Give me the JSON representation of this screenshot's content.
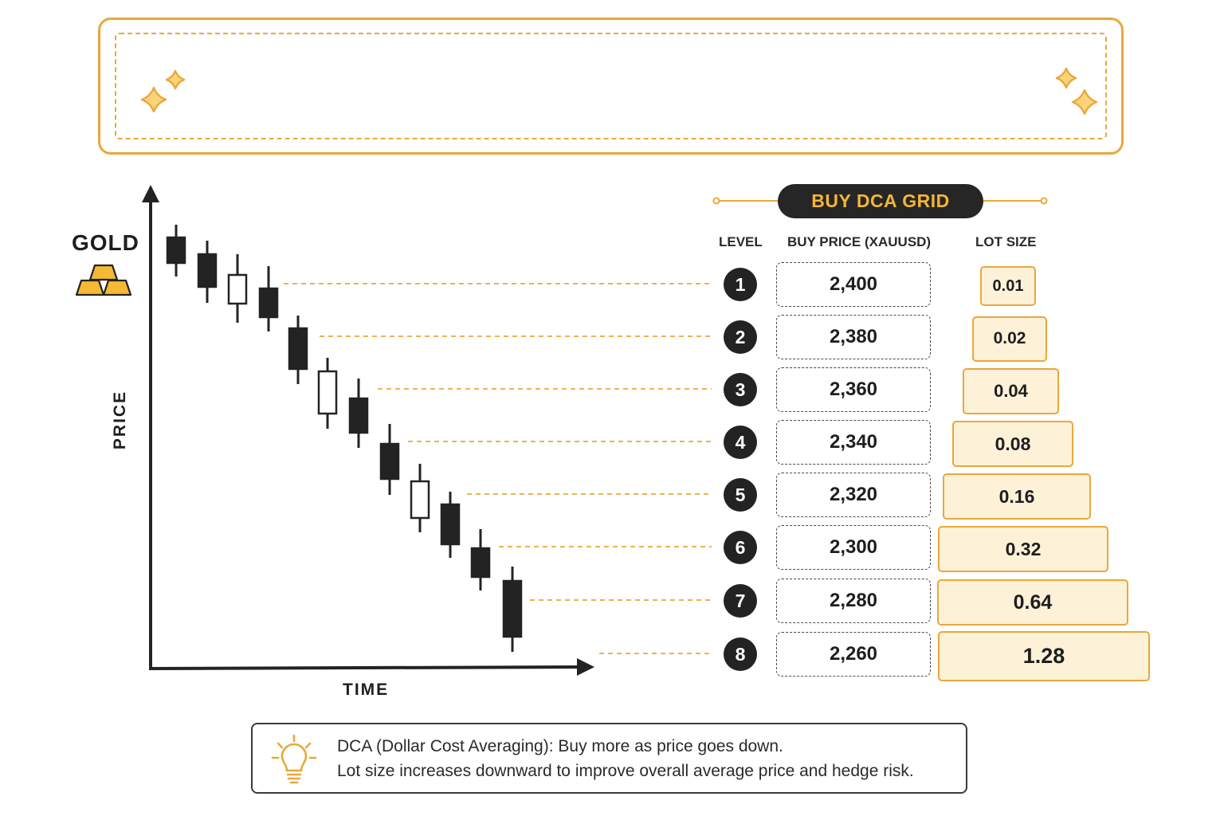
{
  "colors": {
    "accent": "#e9a83a",
    "dark": "#232323",
    "lot_fill": "#fdf1d8"
  },
  "icons": {
    "banner_left": "sparkle-icon",
    "banner_right": "sparkle-icon",
    "asset": "gold-bars-icon",
    "note": "lightbulb-icon"
  },
  "chart": {
    "asset_label": "GOLD",
    "y_axis_label": "PRICE",
    "x_axis_label": "TIME"
  },
  "chart_data": {
    "type": "candlestick",
    "trend": "down",
    "candle_direction": [
      "down",
      "down",
      "up",
      "down",
      "down",
      "up",
      "down",
      "down",
      "up",
      "down",
      "down",
      "down"
    ]
  },
  "grid": {
    "title": "BUY DCA GRID",
    "columns": {
      "level": "LEVEL",
      "price": "BUY PRICE (XAUUSD)",
      "lot": "LOT SIZE"
    },
    "rows": [
      {
        "level": "1",
        "price": "2,400",
        "lot": "0.01"
      },
      {
        "level": "2",
        "price": "2,380",
        "lot": "0.02"
      },
      {
        "level": "3",
        "price": "2,360",
        "lot": "0.04"
      },
      {
        "level": "4",
        "price": "2,340",
        "lot": "0.08"
      },
      {
        "level": "5",
        "price": "2,320",
        "lot": "0.16"
      },
      {
        "level": "6",
        "price": "2,300",
        "lot": "0.32"
      },
      {
        "level": "7",
        "price": "2,280",
        "lot": "0.64"
      },
      {
        "level": "8",
        "price": "2,260",
        "lot": "1.28"
      }
    ]
  },
  "note": {
    "line1": "DCA (Dollar Cost Averaging): Buy more as price goes down.",
    "line2": "Lot size increases downward to improve overall average price and hedge risk."
  }
}
